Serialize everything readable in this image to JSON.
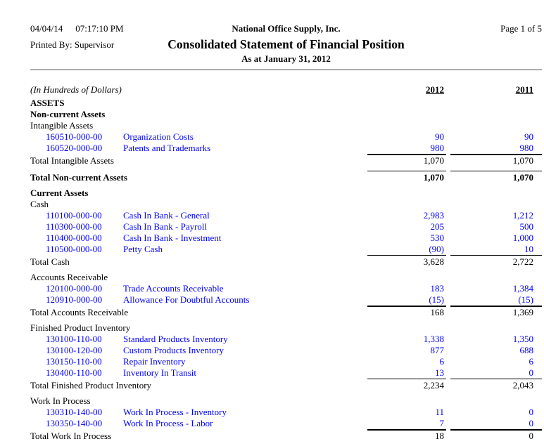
{
  "header": {
    "date": "04/04/14",
    "time": "07:17:10 PM",
    "company": "National Office Supply, Inc.",
    "page": "Page 1 of 5",
    "printed_by": "Printed By: Supervisor",
    "title": "Consolidated Statement of Financial Position",
    "subtitle": "As at January 31, 2012"
  },
  "columns": {
    "units_note": "(In Hundreds of Dollars)",
    "year1": "2012",
    "year2": "2011"
  },
  "colors": {
    "account_link": "#0000ff",
    "text": "#000000",
    "rule": "#4a4a4a"
  },
  "report": {
    "rows": [
      {
        "type": "section",
        "label": "ASSETS"
      },
      {
        "type": "section",
        "label": "Non-current Assets"
      },
      {
        "type": "group",
        "label": "Intangible Assets"
      },
      {
        "type": "account",
        "number": "160510-000-00",
        "name": "Organization Costs",
        "y2012": "90",
        "y2011": "90"
      },
      {
        "type": "account",
        "number": "160520-000-00",
        "name": "Patents and Trademarks",
        "y2012": "980",
        "y2011": "980"
      },
      {
        "type": "total",
        "label": "Total Intangible Assets",
        "y2012": "1,070",
        "y2011": "1,070",
        "rule": "thick"
      },
      {
        "type": "total",
        "label": "Total Non-current Assets",
        "y2012": "1,070",
        "y2011": "1,070",
        "rule": "thin",
        "bold": true,
        "gap_before": true
      },
      {
        "type": "section",
        "label": "Current Assets",
        "gap_before": true
      },
      {
        "type": "group",
        "label": "Cash"
      },
      {
        "type": "account",
        "number": "110100-000-00",
        "name": "Cash In Bank - General",
        "y2012": "2,983",
        "y2011": "1,212"
      },
      {
        "type": "account",
        "number": "110300-000-00",
        "name": "Cash In Bank - Payroll",
        "y2012": "205",
        "y2011": "500"
      },
      {
        "type": "account",
        "number": "110400-000-00",
        "name": "Cash In Bank - Investment",
        "y2012": "530",
        "y2011": "1,000"
      },
      {
        "type": "account",
        "number": "110500-000-00",
        "name": "Petty Cash",
        "y2012": "(90)",
        "y2011": "10"
      },
      {
        "type": "total",
        "label": "Total Cash",
        "y2012": "3,628",
        "y2011": "2,722",
        "rule": "thin"
      },
      {
        "type": "group",
        "label": "Accounts Receivable",
        "gap_before": true
      },
      {
        "type": "account",
        "number": "120100-000-00",
        "name": "Trade Accounts Receivable",
        "y2012": "183",
        "y2011": "1,384"
      },
      {
        "type": "account",
        "number": "120910-000-00",
        "name": "Allowance For Doubtful Accounts",
        "y2012": "(15)",
        "y2011": "(15)"
      },
      {
        "type": "total",
        "label": "Total Accounts Receivable",
        "y2012": "168",
        "y2011": "1,369",
        "rule": "thick"
      },
      {
        "type": "group",
        "label": "Finished Product Inventory",
        "gap_before": true
      },
      {
        "type": "account",
        "number": "130100-110-00",
        "name": "Standard Products Inventory",
        "y2012": "1,338",
        "y2011": "1,350"
      },
      {
        "type": "account",
        "number": "130100-120-00",
        "name": "Custom Products Inventory",
        "y2012": "877",
        "y2011": "688"
      },
      {
        "type": "account",
        "number": "130150-110-00",
        "name": "Repair Inventory",
        "y2012": "6",
        "y2011": "6"
      },
      {
        "type": "account",
        "number": "130400-110-00",
        "name": "Inventory In Transit",
        "y2012": "13",
        "y2011": "0"
      },
      {
        "type": "total",
        "label": "Total Finished Product Inventory",
        "y2012": "2,234",
        "y2011": "2,043",
        "rule": "thin"
      },
      {
        "type": "group",
        "label": "Work In Process",
        "gap_before": true
      },
      {
        "type": "account",
        "number": "130310-140-00",
        "name": "Work In Process - Inventory",
        "y2012": "11",
        "y2011": "0"
      },
      {
        "type": "account",
        "number": "130350-140-00",
        "name": "Work In Process - Labor",
        "y2012": "7",
        "y2011": "0"
      },
      {
        "type": "total",
        "label": "Total Work In Process",
        "y2012": "18",
        "y2011": "0",
        "rule": "thick"
      }
    ]
  }
}
